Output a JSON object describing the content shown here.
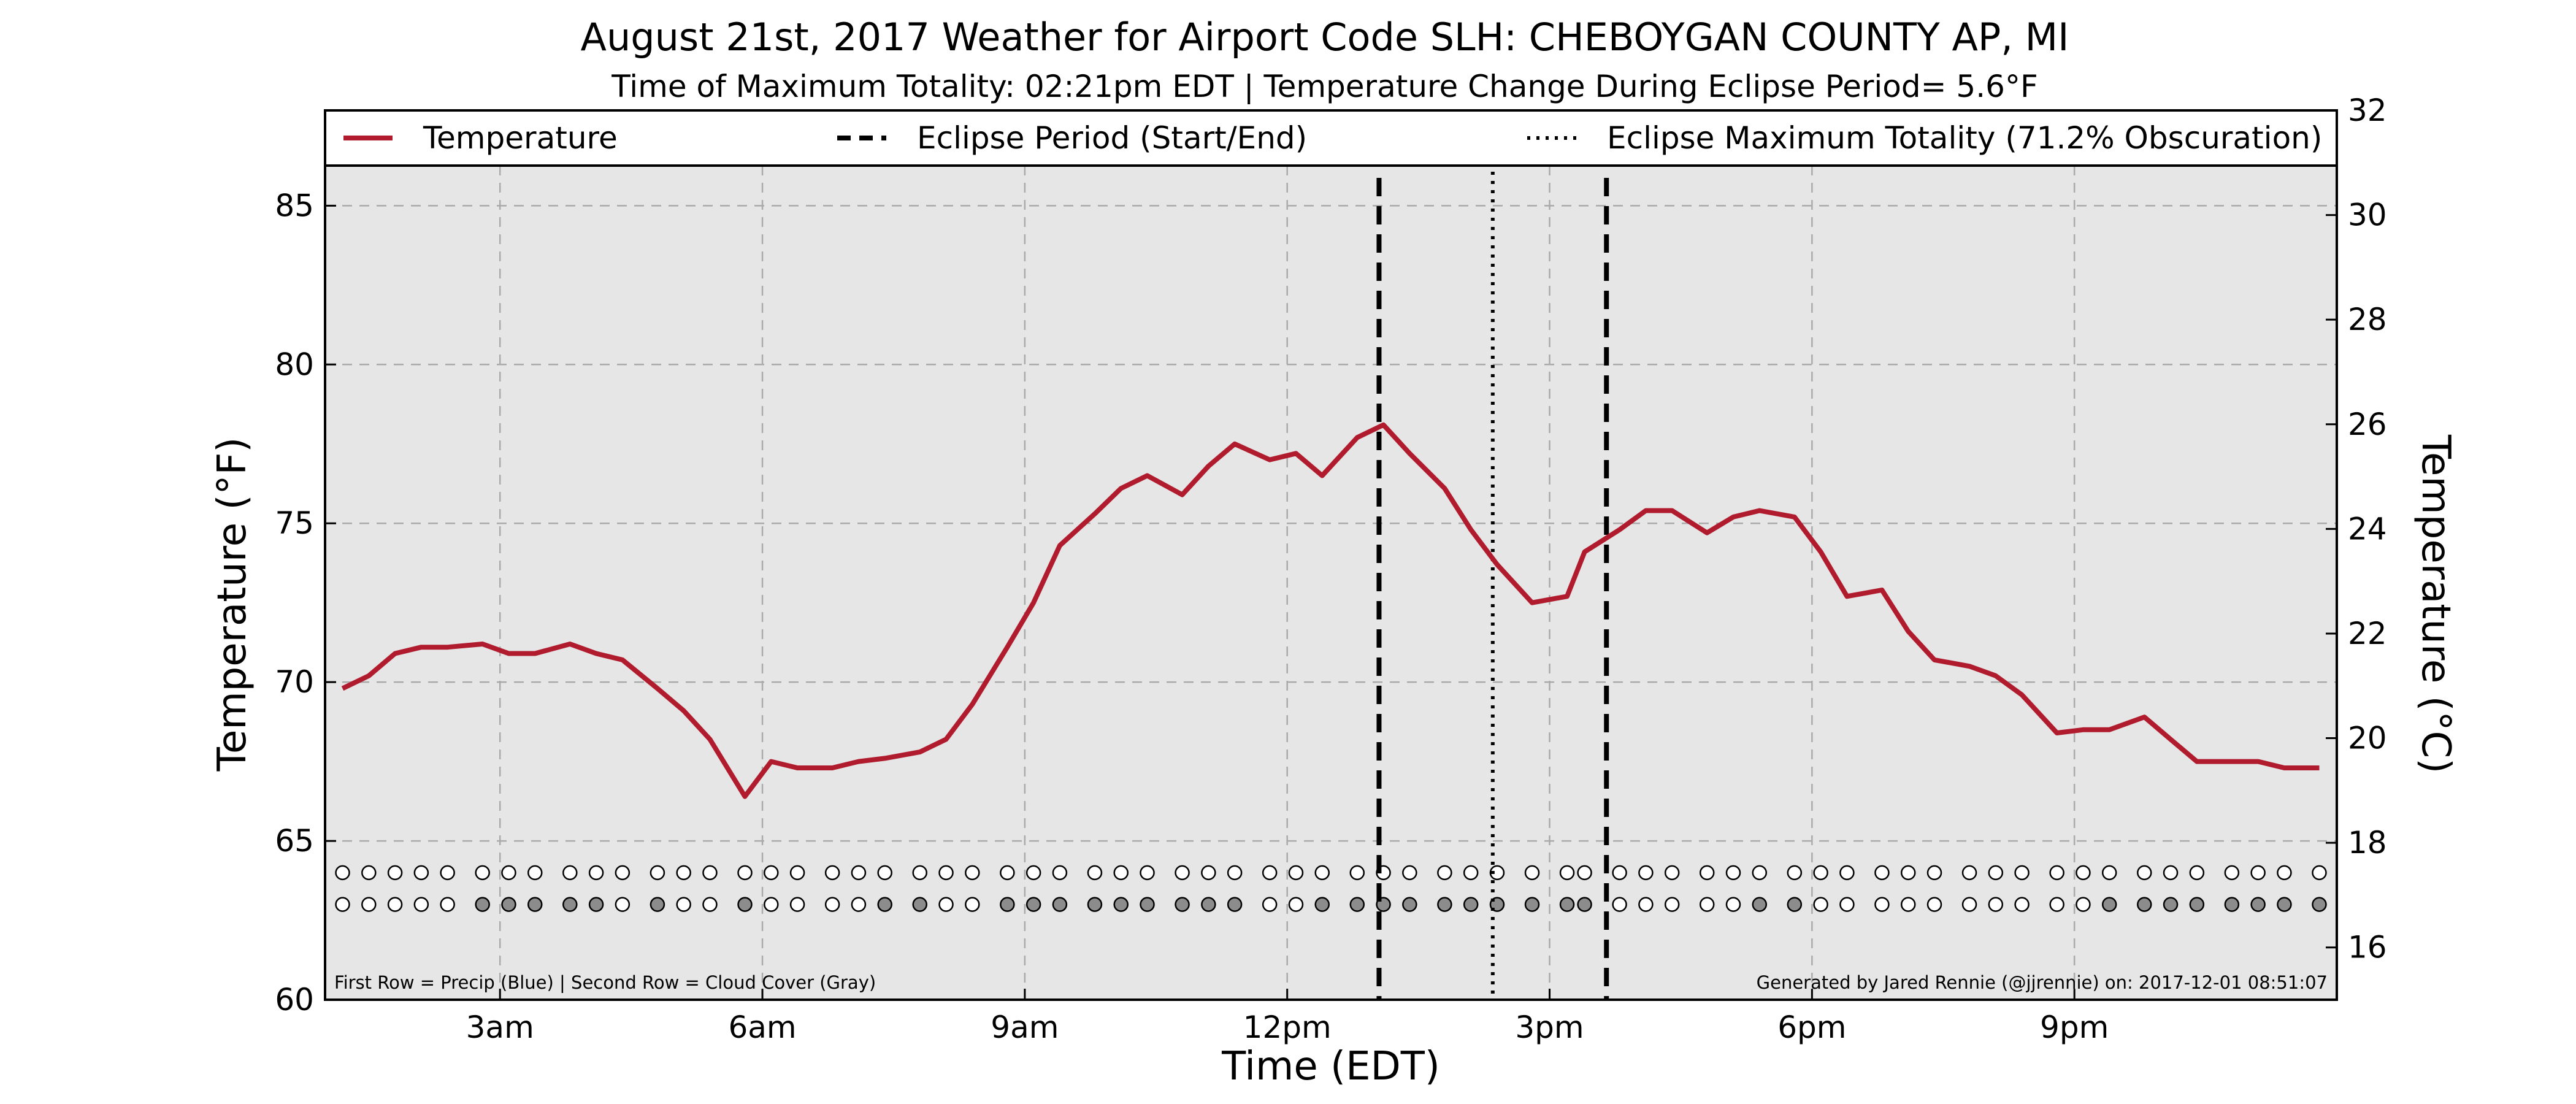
{
  "chart_data": {
    "type": "line",
    "title": "August 21st, 2017 Weather for Airport Code SLH: CHEBOYGAN COUNTY AP, MI",
    "subtitle": "Time of Maximum Totality: 02:21pm EDT | Temperature Change During Eclipse Period= 5.6°F",
    "xlabel": "Time (EDT)",
    "ylabel": "Temperature (°F)",
    "ylabel_right": "Temperature (°C)",
    "x_ticks": [
      {
        "label": "3am",
        "hour": 3
      },
      {
        "label": "6am",
        "hour": 6
      },
      {
        "label": "9am",
        "hour": 9
      },
      {
        "label": "12pm",
        "hour": 12
      },
      {
        "label": "3pm",
        "hour": 15
      },
      {
        "label": "6pm",
        "hour": 18
      },
      {
        "label": "9pm",
        "hour": 21
      }
    ],
    "xlim": [
      1.0,
      24.0
    ],
    "ylim": [
      60,
      88
    ],
    "yticks": [
      "60",
      "65",
      "70",
      "75",
      "80",
      "85"
    ],
    "ylim_right": [
      15.0,
      32.0
    ],
    "yticks_right": [
      "16",
      "18",
      "20",
      "22",
      "24",
      "26",
      "28",
      "30",
      "32"
    ],
    "grid": true,
    "legend": {
      "placement": "top",
      "entries": [
        {
          "label": "Temperature",
          "style": "solid"
        },
        {
          "label": "Eclipse Period (Start/End)",
          "style": "dashed"
        },
        {
          "label": "Eclipse Maximum Totality (71.2% Obscuration)",
          "style": "dotted"
        }
      ]
    },
    "series": [
      {
        "name": "Temperature",
        "color": "#b01c2e",
        "x": [
          1.2,
          1.5,
          1.8,
          2.1,
          2.4,
          2.8,
          3.1,
          3.4,
          3.8,
          4.1,
          4.4,
          4.8,
          5.1,
          5.4,
          5.8,
          6.1,
          6.4,
          6.8,
          7.1,
          7.4,
          7.8,
          8.1,
          8.4,
          8.8,
          9.1,
          9.4,
          9.8,
          10.1,
          10.4,
          10.8,
          11.1,
          11.4,
          11.8,
          12.1,
          12.4,
          12.8,
          13.1,
          13.4,
          13.8,
          14.1,
          14.4,
          14.8,
          15.2,
          15.4,
          15.8,
          16.1,
          16.4,
          16.8,
          17.1,
          17.4,
          17.8,
          18.1,
          18.4,
          18.8,
          19.1,
          19.4,
          19.8,
          20.1,
          20.4,
          20.8,
          21.1,
          21.4,
          21.8,
          22.1,
          22.4,
          22.8,
          23.1,
          23.4,
          23.8
        ],
        "values": [
          69.8,
          70.2,
          70.9,
          71.1,
          71.1,
          71.2,
          70.9,
          70.9,
          71.2,
          70.9,
          70.7,
          69.8,
          69.1,
          68.2,
          66.4,
          67.5,
          67.3,
          67.3,
          67.5,
          67.6,
          67.8,
          68.2,
          69.3,
          71.1,
          72.5,
          74.3,
          75.3,
          76.1,
          76.5,
          75.9,
          76.8,
          77.5,
          77.0,
          77.2,
          76.5,
          77.7,
          78.1,
          77.2,
          76.1,
          74.8,
          73.7,
          72.5,
          72.7,
          74.1,
          74.8,
          75.4,
          75.4,
          74.7,
          75.2,
          75.4,
          75.2,
          74.1,
          72.7,
          72.9,
          71.6,
          70.7,
          70.5,
          70.2,
          69.6,
          68.4,
          68.5,
          68.5,
          68.9,
          68.2,
          67.5,
          67.5,
          67.5,
          67.3,
          67.3
        ]
      }
    ],
    "eclipse": {
      "start_hour": 13.05,
      "max_hour": 14.35,
      "end_hour": 15.65
    },
    "indicator_rows": {
      "hours": [
        1.2,
        1.5,
        1.8,
        2.1,
        2.4,
        2.8,
        3.1,
        3.4,
        3.8,
        4.1,
        4.4,
        4.8,
        5.1,
        5.4,
        5.8,
        6.1,
        6.4,
        6.8,
        7.1,
        7.4,
        7.8,
        8.1,
        8.4,
        8.8,
        9.1,
        9.4,
        9.8,
        10.1,
        10.4,
        10.8,
        11.1,
        11.4,
        11.8,
        12.1,
        12.4,
        12.8,
        13.1,
        13.4,
        13.8,
        14.1,
        14.4,
        14.8,
        15.2,
        15.4,
        15.8,
        16.1,
        16.4,
        16.8,
        17.1,
        17.4,
        17.8,
        18.1,
        18.4,
        18.8,
        19.1,
        19.4,
        19.8,
        20.1,
        20.4,
        20.8,
        21.1,
        21.4,
        21.8,
        22.1,
        22.4,
        22.8,
        23.1,
        23.4,
        23.8
      ],
      "precip_level": 64.0,
      "cloud_level": 63.0,
      "precip": [
        0,
        0,
        0,
        0,
        0,
        0,
        0,
        0,
        0,
        0,
        0,
        0,
        0,
        0,
        0,
        0,
        0,
        0,
        0,
        0,
        0,
        0,
        0,
        0,
        0,
        0,
        0,
        0,
        0,
        0,
        0,
        0,
        0,
        0,
        0,
        0,
        0,
        0,
        0,
        0,
        0,
        0,
        0,
        0,
        0,
        0,
        0,
        0,
        0,
        0,
        0,
        0,
        0,
        0,
        0,
        0,
        0,
        0,
        0,
        0,
        0,
        0,
        0,
        0,
        0,
        0,
        0,
        0,
        0
      ],
      "cloud": [
        0,
        0,
        0,
        0,
        0,
        1,
        1,
        1,
        1,
        1,
        0,
        1,
        0,
        0,
        1,
        0,
        0,
        0,
        0,
        1,
        1,
        0,
        0,
        1,
        1,
        1,
        1,
        1,
        1,
        1,
        1,
        1,
        0,
        0,
        1,
        1,
        1,
        1,
        1,
        1,
        1,
        1,
        1,
        1,
        0,
        0,
        0,
        0,
        0,
        1,
        1,
        0,
        0,
        0,
        0,
        0,
        0,
        0,
        0,
        0,
        0,
        1,
        1,
        1,
        1,
        1,
        1,
        1,
        1
      ]
    },
    "footnote_left": "First Row = Precip (Blue) | Second Row = Cloud Cover (Gray)",
    "footnote_right": "Generated by Jared Rennie (@jjrennie) on: 2017-12-01 08:51:07",
    "colors": {
      "temperature": "#b01c2e",
      "plot_background": "#e6e6e6",
      "grid": "#aaaaaa",
      "cloud_fill": "#8c8c8c",
      "empty_marker": "#ffffff"
    }
  }
}
